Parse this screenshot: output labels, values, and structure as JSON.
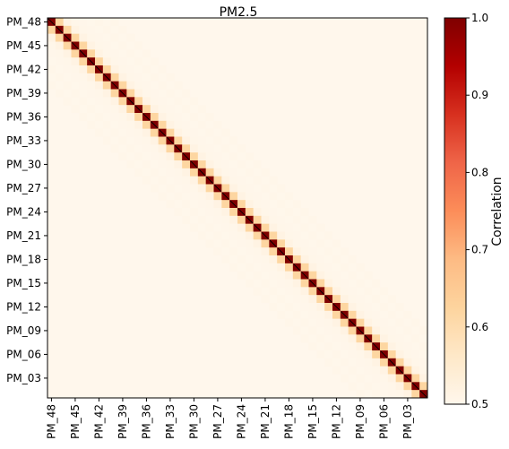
{
  "chart_data": {
    "type": "heatmap",
    "title": "PM2.5",
    "n": 48,
    "x_tick_labels": [
      "PM_48",
      "PM_45",
      "PM_42",
      "PM_39",
      "PM_36",
      "PM_33",
      "PM_30",
      "PM_27",
      "PM_24",
      "PM_21",
      "PM_18",
      "PM_15",
      "PM_12",
      "PM_09",
      "PM_06",
      "PM_03"
    ],
    "y_tick_labels": [
      "PM_48",
      "PM_45",
      "PM_42",
      "PM_39",
      "PM_36",
      "PM_33",
      "PM_30",
      "PM_27",
      "PM_24",
      "PM_21",
      "PM_18",
      "PM_15",
      "PM_12",
      "PM_09",
      "PM_06",
      "PM_03"
    ],
    "correlation_by_lag": [
      {
        "lag": 0,
        "value": 1.0
      },
      {
        "lag": 1,
        "value": 0.62
      },
      {
        "lag": 2,
        "value": 0.515
      },
      {
        "lag": 3,
        "value": 0.505
      },
      {
        "lag": 4,
        "value": 0.503
      },
      {
        "lag": 5,
        "value": 0.502
      },
      {
        "lag": 6,
        "value": 0.505
      },
      {
        "lag": 7,
        "value": 0.502
      },
      {
        "lag": 8,
        "value": 0.505
      }
    ],
    "background_value": 0.5,
    "colorbar": {
      "label": "Correlation",
      "range": [
        0.5,
        1.0
      ],
      "ticks": [
        "0.5",
        "0.6",
        "0.7",
        "0.8",
        "0.9",
        "1.0"
      ],
      "colormap": "OrRd"
    }
  }
}
